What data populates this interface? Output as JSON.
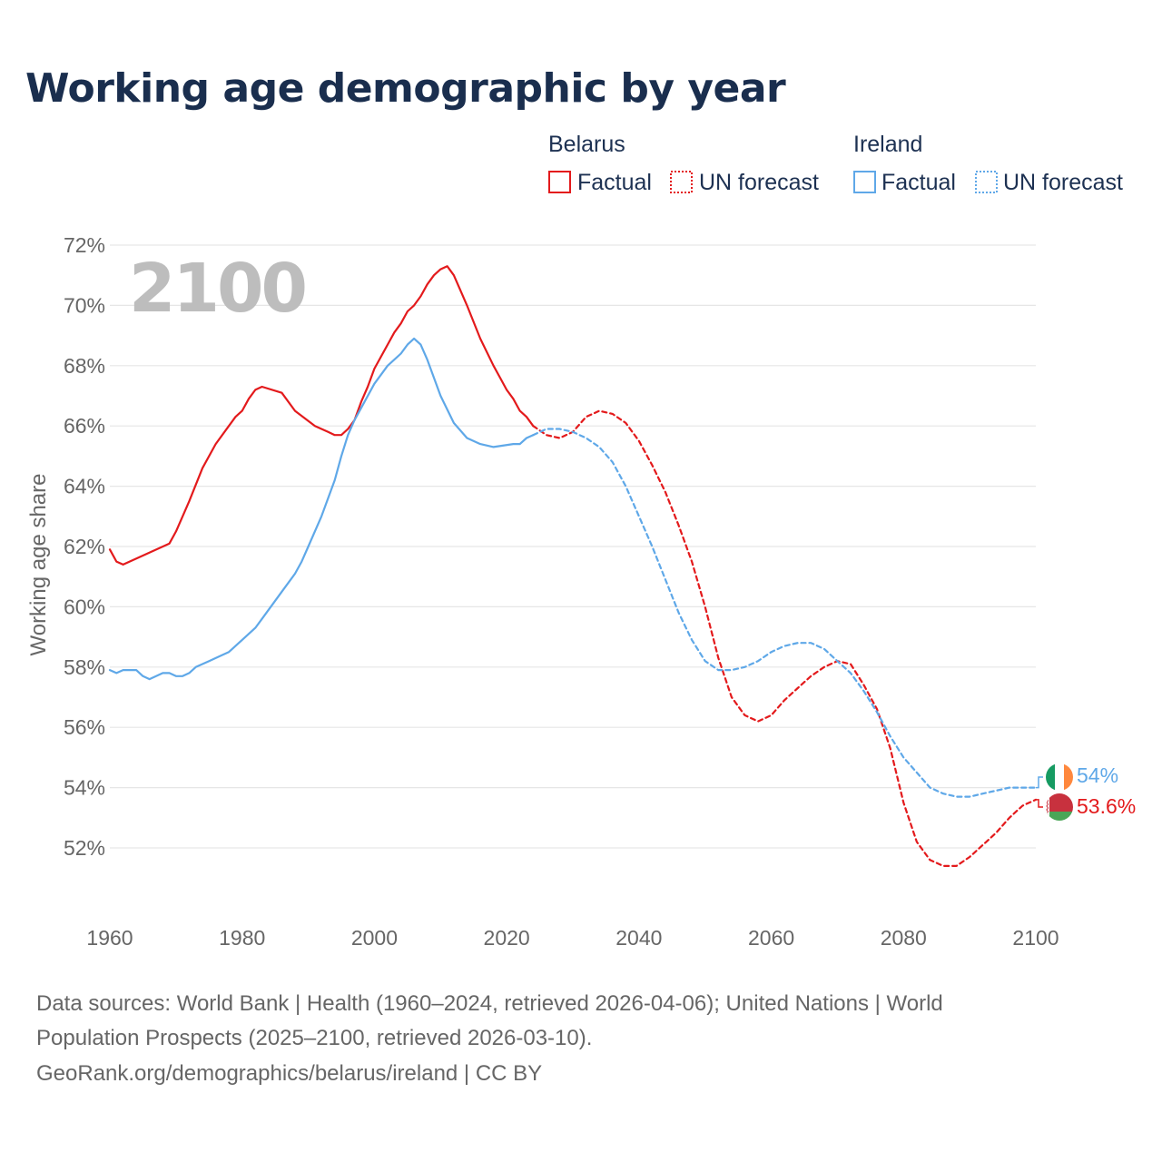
{
  "title": "Working age demographic by year",
  "legend": {
    "groups": [
      {
        "name": "Belarus",
        "color": "#e31a1c",
        "factual_label": "Factual",
        "forecast_label": "UN forecast"
      },
      {
        "name": "Ireland",
        "color": "#5fa8e8",
        "factual_label": "Factual",
        "forecast_label": "UN forecast"
      }
    ]
  },
  "year_display": "2100",
  "footer": {
    "line1": "Data sources: World Bank | Health (1960–2024, retrieved 2026-04-06); United Nations | World",
    "line2": "Population Prospects (2025–2100, retrieved 2026-03-10).",
    "line3": "GeoRank.org/demographics/belarus/ireland | CC BY"
  },
  "chart_data": {
    "type": "line",
    "title": "Working age demographic by year",
    "xlabel": "",
    "ylabel": "Working age share",
    "xlim": [
      1960,
      2100
    ],
    "ylim": [
      50,
      72
    ],
    "x_ticks": [
      1960,
      1980,
      2000,
      2020,
      2040,
      2060,
      2080,
      2100
    ],
    "x_tick_labels": [
      "1960",
      "1980",
      "2000",
      "2020",
      "2040",
      "2060",
      "2080",
      "2100"
    ],
    "y_ticks": [
      52,
      54,
      56,
      58,
      60,
      62,
      64,
      66,
      68,
      70,
      72
    ],
    "y_tick_labels": [
      "52%",
      "54%",
      "56%",
      "58%",
      "60%",
      "62%",
      "64%",
      "66%",
      "68%",
      "70%",
      "72%"
    ],
    "grid": true,
    "series": [
      {
        "name": "Belarus",
        "segment": "Factual",
        "color": "#e31a1c",
        "x": [
          1960,
          1961,
          1962,
          1965,
          1969,
          1970,
          1972,
          1974,
          1976,
          1978,
          1979,
          1980,
          1981,
          1982,
          1983,
          1986,
          1988,
          1991,
          1993,
          1994,
          1995,
          1996,
          1997,
          1998,
          1999,
          2000,
          2002,
          2003,
          2004,
          2005,
          2006,
          2007,
          2008,
          2009,
          2010,
          2011,
          2012,
          2014,
          2016,
          2018,
          2019,
          2020,
          2021,
          2022,
          2023,
          2024
        ],
        "values": [
          61.9,
          61.5,
          61.4,
          61.7,
          62.1,
          62.5,
          63.5,
          64.6,
          65.4,
          66.0,
          66.3,
          66.5,
          66.9,
          67.2,
          67.3,
          67.1,
          66.5,
          66.0,
          65.8,
          65.7,
          65.7,
          65.9,
          66.2,
          66.8,
          67.3,
          67.9,
          68.7,
          69.1,
          69.4,
          69.8,
          70.0,
          70.3,
          70.7,
          71.0,
          71.2,
          71.3,
          71.0,
          70.0,
          68.9,
          68.0,
          67.6,
          67.2,
          66.9,
          66.5,
          66.3,
          66.0
        ]
      },
      {
        "name": "Belarus",
        "segment": "UN forecast",
        "color": "#e31a1c",
        "x": [
          2024,
          2026,
          2028,
          2030,
          2032,
          2034,
          2036,
          2038,
          2040,
          2042,
          2044,
          2046,
          2048,
          2050,
          2052,
          2054,
          2056,
          2058,
          2060,
          2062,
          2064,
          2066,
          2068,
          2070,
          2072,
          2074,
          2076,
          2078,
          2080,
          2082,
          2084,
          2086,
          2088,
          2090,
          2092,
          2094,
          2096,
          2098,
          2100
        ],
        "values": [
          66.0,
          65.7,
          65.6,
          65.8,
          66.3,
          66.5,
          66.4,
          66.1,
          65.5,
          64.7,
          63.8,
          62.7,
          61.5,
          60.0,
          58.3,
          57.0,
          56.4,
          56.2,
          56.4,
          56.9,
          57.3,
          57.7,
          58.0,
          58.2,
          58.1,
          57.4,
          56.6,
          55.3,
          53.5,
          52.2,
          51.6,
          51.4,
          51.4,
          51.7,
          52.1,
          52.5,
          53.0,
          53.4,
          53.6
        ]
      },
      {
        "name": "Ireland",
        "segment": "Factual",
        "color": "#5fa8e8",
        "x": [
          1960,
          1961,
          1962,
          1964,
          1965,
          1966,
          1967,
          1968,
          1969,
          1970,
          1971,
          1972,
          1973,
          1975,
          1977,
          1978,
          1979,
          1980,
          1982,
          1983,
          1986,
          1988,
          1989,
          1990,
          1992,
          1994,
          1995,
          1996,
          1997,
          1998,
          2000,
          2002,
          2003,
          2004,
          2005,
          2006,
          2007,
          2008,
          2009,
          2010,
          2012,
          2014,
          2016,
          2018,
          2021,
          2022,
          2023,
          2024
        ],
        "values": [
          57.9,
          57.8,
          57.9,
          57.9,
          57.7,
          57.6,
          57.7,
          57.8,
          57.8,
          57.7,
          57.7,
          57.8,
          58.0,
          58.2,
          58.4,
          58.5,
          58.7,
          58.9,
          59.3,
          59.6,
          60.5,
          61.1,
          61.5,
          62.0,
          63.0,
          64.2,
          65.0,
          65.7,
          66.2,
          66.6,
          67.4,
          68.0,
          68.2,
          68.4,
          68.7,
          68.9,
          68.7,
          68.2,
          67.6,
          67.0,
          66.1,
          65.6,
          65.4,
          65.3,
          65.4,
          65.4,
          65.6,
          65.7
        ]
      },
      {
        "name": "Ireland",
        "segment": "UN forecast",
        "color": "#5fa8e8",
        "x": [
          2024,
          2026,
          2028,
          2030,
          2032,
          2034,
          2036,
          2038,
          2040,
          2042,
          2044,
          2046,
          2048,
          2050,
          2052,
          2054,
          2056,
          2058,
          2060,
          2062,
          2064,
          2066,
          2068,
          2070,
          2072,
          2074,
          2076,
          2078,
          2080,
          2082,
          2084,
          2086,
          2088,
          2090,
          2092,
          2094,
          2096,
          2098,
          2100
        ],
        "values": [
          65.7,
          65.9,
          65.9,
          65.8,
          65.6,
          65.3,
          64.8,
          64.0,
          63.0,
          62.0,
          60.9,
          59.8,
          58.9,
          58.2,
          57.9,
          57.9,
          58.0,
          58.2,
          58.5,
          58.7,
          58.8,
          58.8,
          58.6,
          58.2,
          57.8,
          57.2,
          56.5,
          55.7,
          55.0,
          54.5,
          54.0,
          53.8,
          53.7,
          53.7,
          53.8,
          53.9,
          54.0,
          54.0,
          54.0
        ]
      }
    ],
    "end_labels": [
      {
        "country": "Ireland",
        "text": "54%",
        "value": 54.0,
        "color": "#5fa8e8",
        "flag": "ireland-flag-icon"
      },
      {
        "country": "Belarus",
        "text": "53.6%",
        "value": 53.6,
        "color": "#e31a1c",
        "flag": "belarus-flag-icon"
      }
    ]
  }
}
